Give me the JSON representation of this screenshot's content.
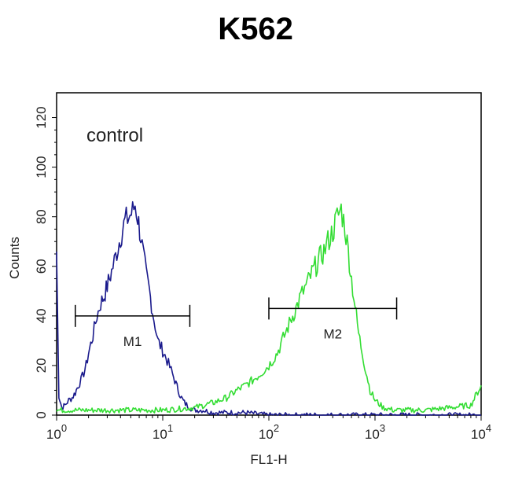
{
  "chart_data": {
    "type": "line",
    "title": "K562",
    "xlabel": "FL1-H",
    "ylabel": "Counts",
    "xscale": "log",
    "xlim": [
      1,
      10000
    ],
    "ylim": [
      0,
      130
    ],
    "x_ticks": [
      {
        "value": 1,
        "base": "10",
        "exp": "0"
      },
      {
        "value": 10,
        "base": "10",
        "exp": "1"
      },
      {
        "value": 100,
        "base": "10",
        "exp": "2"
      },
      {
        "value": 1000,
        "base": "10",
        "exp": "3"
      },
      {
        "value": 10000,
        "base": "10",
        "exp": "4"
      }
    ],
    "y_ticks": [
      0,
      20,
      40,
      60,
      80,
      100,
      120
    ],
    "annotation": "control",
    "colors": {
      "control": "#1a1a8c",
      "sample": "#33dd33",
      "gate": "#000000",
      "frame": "#000000"
    },
    "series": [
      {
        "key": "control",
        "x": [
          1.0,
          1.05,
          1.12,
          1.2,
          1.3,
          1.4,
          1.5,
          1.6,
          1.7,
          1.8,
          1.9,
          2.0,
          2.2,
          2.4,
          2.6,
          2.8,
          3.0,
          3.3,
          3.6,
          4.0,
          4.4,
          4.8,
          5.2,
          5.5,
          5.8,
          6.2,
          6.6,
          7.0,
          7.5,
          8.0,
          8.5,
          9.0,
          10,
          11,
          12,
          13,
          14,
          15,
          16,
          18,
          20,
          24,
          30,
          40,
          60,
          100,
          200,
          500,
          1000,
          3000,
          10000
        ],
        "y": [
          66,
          8,
          3,
          4,
          6,
          7,
          9,
          12,
          14,
          17,
          20,
          25,
          32,
          40,
          45,
          48,
          52,
          58,
          64,
          72,
          78,
          80,
          82,
          85,
          80,
          72,
          64,
          56,
          50,
          42,
          36,
          30,
          26,
          22,
          18,
          14,
          10,
          7,
          5,
          3,
          2,
          2,
          1,
          1,
          1,
          0,
          0,
          0,
          0,
          0,
          0
        ]
      },
      {
        "key": "sample",
        "x": [
          1,
          2,
          5,
          10,
          20,
          30,
          40,
          50,
          60,
          70,
          80,
          100,
          120,
          140,
          160,
          180,
          200,
          230,
          260,
          300,
          330,
          360,
          400,
          440,
          480,
          520,
          560,
          600,
          650,
          700,
          800,
          900,
          1000,
          1200,
          1500,
          2000,
          3000,
          5000,
          8000,
          10000
        ],
        "y": [
          2,
          2,
          2,
          2,
          3,
          5,
          7,
          10,
          12,
          14,
          16,
          20,
          25,
          32,
          38,
          43,
          48,
          53,
          58,
          63,
          66,
          70,
          74,
          80,
          83,
          76,
          66,
          55,
          44,
          33,
          20,
          10,
          6,
          3,
          2,
          2,
          2,
          3,
          4,
          12
        ]
      }
    ],
    "gates": [
      {
        "label": "M1",
        "x1": 1.5,
        "x2": 18,
        "y": 40
      },
      {
        "label": "M2",
        "x1": 100,
        "x2": 1600,
        "y": 43
      }
    ]
  }
}
